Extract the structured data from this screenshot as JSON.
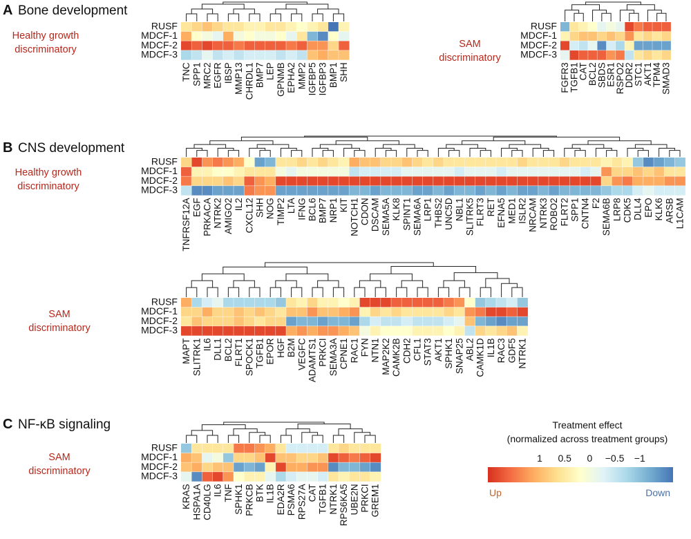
{
  "scale": {
    "colors": [
      "#d7301f",
      "#f46d43",
      "#fdae61",
      "#fee090",
      "#ffffcc",
      "#e0f3f8",
      "#abd9e9",
      "#74add1",
      "#4575b4"
    ],
    "up_color": "#c4622d",
    "down_color": "#4a6fa5",
    "group_label_color": "#b5281c"
  },
  "legend": {
    "title_line1": "Treatment effect",
    "title_line2": "(normalized across treatment groups)",
    "ticks": [
      "1",
      "0.5",
      "0",
      "−0.5",
      "−1"
    ],
    "tick_values": [
      1,
      0.5,
      0,
      -0.5,
      -1
    ],
    "up_label": "Up",
    "down_label": "Down"
  },
  "panels": [
    {
      "letter": "A",
      "title": "Bone development"
    },
    {
      "letter": "B",
      "title": "CNS development"
    },
    {
      "letter": "C",
      "title": "NF-κB signaling"
    }
  ],
  "chart_data": [
    {
      "type": "heatmap",
      "id": "bone-healthy",
      "panel": "A",
      "group_label": [
        "Healthy growth",
        "discriminatory"
      ],
      "rows": [
        "RUSF",
        "MDCF-1",
        "MDCF-2",
        "MDCF-3"
      ],
      "columns": [
        "TNC",
        "SPP1",
        "MRC2",
        "EGFR",
        "IBSP",
        "MMP13",
        "CHRDL1",
        "BMP7",
        "LEP",
        "GPNMB",
        "EPHA2",
        "MMP2",
        "IGFBP5",
        "IGFBP3",
        "BMP1",
        "SHH"
      ],
      "values": [
        [
          0.2,
          0.3,
          0.4,
          0.3,
          0.2,
          0.2,
          0.1,
          0.1,
          0.2,
          0.2,
          0.1,
          0.0,
          0.1,
          0.2,
          -1.0,
          0.1
        ],
        [
          0.5,
          0.0,
          -0.1,
          -0.2,
          0.5,
          -0.1,
          0.0,
          -0.1,
          -0.1,
          0.0,
          -0.2,
          0.2,
          -0.7,
          -0.9,
          0.0,
          -0.2
        ],
        [
          0.9,
          0.8,
          0.9,
          0.8,
          0.8,
          0.7,
          0.8,
          0.8,
          0.8,
          0.8,
          0.7,
          0.8,
          0.6,
          0.6,
          0.3,
          0.8
        ],
        [
          -0.5,
          -0.4,
          -0.2,
          -0.4,
          -0.3,
          -0.4,
          -0.3,
          -0.3,
          -0.3,
          -0.4,
          -0.3,
          -0.4,
          0.4,
          0.5,
          0.4,
          0.4
        ]
      ]
    },
    {
      "type": "heatmap",
      "id": "bone-sam",
      "panel": "A",
      "group_label": [
        "SAM",
        "discriminatory"
      ],
      "rows": [
        "RUSF",
        "MDCF-1",
        "MDCF-2",
        "MDCF-3"
      ],
      "columns": [
        "FGFR3",
        "TGFB1",
        "CAT",
        "BCL2",
        "SBDS",
        "ESR1",
        "RSPO2",
        "DDR2",
        "STC1",
        "AKT1",
        "TPM4",
        "SMAD3"
      ],
      "values": [
        [
          -0.7,
          0.2,
          0.1,
          0.0,
          -0.2,
          -0.1,
          -0.2,
          0.9,
          0.7,
          0.8,
          0.8,
          0.8
        ],
        [
          0.1,
          0.3,
          0.4,
          0.4,
          0.3,
          0.4,
          0.3,
          0.6,
          0.2,
          0.3,
          0.2,
          0.3
        ],
        [
          0.9,
          -0.3,
          -0.4,
          -0.2,
          -0.9,
          -0.3,
          -0.5,
          0.1,
          -0.8,
          -0.8,
          -0.8,
          -0.8
        ],
        [
          -0.2,
          0.9,
          0.8,
          0.8,
          0.8,
          0.6,
          0.7,
          -0.4,
          0.2,
          0.3,
          0.2,
          0.3
        ]
      ]
    },
    {
      "type": "heatmap",
      "id": "cns-healthy",
      "panel": "B",
      "group_label": [
        "Healthy growth",
        "discriminatory"
      ],
      "rows": [
        "RUSF",
        "MDCF-1",
        "MDCF-2",
        "MDCF-3"
      ],
      "columns": [
        "TNFRSF12A",
        "EGF",
        "PRKACA",
        "NTRK2",
        "AMIGO2",
        "IL2",
        "CXCL12",
        "SHH",
        "NOG",
        "TIMP2",
        "LTA",
        "IFNG",
        "BCL6",
        "BMP7",
        "NRP1",
        "KIT",
        "NOTCH1",
        "CDON",
        "DSCAM",
        "SEMA5A",
        "KLK8",
        "SPINT1",
        "SEMA6A",
        "LRP1",
        "THBS2",
        "UNC5D",
        "NBL1",
        "SLITRK5",
        "FLRT3",
        "RET",
        "EFNA5",
        "MED1",
        "ISLR2",
        "NRCAM",
        "NTRK3",
        "ROBO2",
        "FLRT2",
        "SPP1",
        "CNTN4",
        "F2",
        "SEMA6B",
        "LRP8",
        "CDK5",
        "DLL4",
        "EPO",
        "KLK6",
        "ARSB",
        "L1CAM"
      ],
      "values": [
        [
          0.3,
          0.9,
          0.6,
          0.7,
          0.6,
          0.5,
          0.0,
          -0.8,
          -0.7,
          0.2,
          0.2,
          0.3,
          0.2,
          0.3,
          0.2,
          0.1,
          0.5,
          0.4,
          0.4,
          0.3,
          0.3,
          0.4,
          0.3,
          0.2,
          0.3,
          0.2,
          0.2,
          0.2,
          0.2,
          0.2,
          0.2,
          0.2,
          0.3,
          0.2,
          0.2,
          0.2,
          0.3,
          0.2,
          0.2,
          0.2,
          0.1,
          0.2,
          0.1,
          -0.6,
          -0.9,
          -0.8,
          -0.7,
          -0.6
        ],
        [
          0.8,
          0.1,
          0.1,
          0.0,
          0.0,
          0.1,
          0.2,
          0.2,
          0.2,
          -0.1,
          -0.2,
          -0.1,
          -0.1,
          -0.1,
          -0.1,
          -0.1,
          -0.4,
          -0.3,
          -0.3,
          -0.3,
          -0.3,
          -0.2,
          -0.2,
          -0.2,
          -0.2,
          -0.2,
          -0.3,
          -0.2,
          -0.2,
          -0.2,
          -0.3,
          -0.2,
          -0.2,
          -0.2,
          -0.2,
          -0.2,
          -0.2,
          -0.2,
          -0.3,
          -0.2,
          0.6,
          0.3,
          0.3,
          0.4,
          0.3,
          0.4,
          0.2,
          0.2
        ],
        [
          0.7,
          0.3,
          0.3,
          0.3,
          0.4,
          0.3,
          0.8,
          0.6,
          0.5,
          0.9,
          0.9,
          0.9,
          0.9,
          0.9,
          0.9,
          0.9,
          0.9,
          0.9,
          0.9,
          0.9,
          0.9,
          0.9,
          0.9,
          0.9,
          0.9,
          0.9,
          0.9,
          0.9,
          0.9,
          0.9,
          0.9,
          0.9,
          0.9,
          0.9,
          0.9,
          0.9,
          0.9,
          0.9,
          0.9,
          0.9,
          0.3,
          0.6,
          0.7,
          0.5,
          0.5,
          0.5,
          0.6,
          0.6
        ],
        [
          -0.4,
          -0.9,
          -0.9,
          -0.8,
          -0.8,
          -0.8,
          0.7,
          0.6,
          0.6,
          -0.8,
          -0.8,
          -0.8,
          -0.8,
          -0.8,
          -0.8,
          -0.8,
          -0.7,
          -0.7,
          -0.8,
          -0.7,
          -0.7,
          -0.7,
          -0.8,
          -0.8,
          -0.7,
          -0.8,
          -0.7,
          -0.7,
          -0.8,
          -0.7,
          -0.8,
          -0.7,
          -0.8,
          -0.8,
          -0.7,
          -0.8,
          -0.7,
          -0.7,
          -0.7,
          -0.7,
          -0.6,
          -0.5,
          -0.5,
          -0.3,
          -0.2,
          -0.3,
          -0.3,
          -0.3
        ]
      ]
    },
    {
      "type": "heatmap",
      "id": "cns-sam",
      "panel": "B",
      "group_label": [
        "SAM",
        "discriminatory"
      ],
      "rows": [
        "RUSF",
        "MDCF-1",
        "MDCF-2",
        "MDCF-3"
      ],
      "columns": [
        "MAPT",
        "SLITRK1",
        "IL6",
        "DLL1",
        "BCL2",
        "FLRT1",
        "SPOCK1",
        "TGFB1",
        "EPOR",
        "HGF",
        "B2M",
        "VEGFC",
        "ADAMTS1",
        "PRKCI",
        "SEMA3A",
        "CPNE1",
        "RAC1",
        "FYN",
        "NTN1",
        "MAP2K2",
        "CAMK2B",
        "CDH2",
        "CFL1",
        "STAT3",
        "AKT1",
        "SPHK1",
        "SNAP25",
        "ABL2",
        "CAMK1D",
        "IL1B",
        "RAC3",
        "GDF5",
        "NTRK1"
      ],
      "values": [
        [
          0.5,
          -0.5,
          -0.3,
          -0.2,
          -0.5,
          -0.5,
          -0.5,
          -0.5,
          -0.5,
          -0.6,
          0.2,
          0.1,
          0.3,
          0.1,
          0.1,
          0.0,
          0.1,
          0.9,
          0.9,
          0.9,
          0.8,
          0.8,
          0.8,
          0.8,
          0.8,
          0.7,
          0.6,
          0.0,
          -0.6,
          -0.5,
          -0.4,
          -0.3,
          -0.6
        ],
        [
          0.3,
          0.3,
          0.5,
          0.3,
          0.3,
          0.4,
          0.3,
          0.4,
          0.3,
          0.2,
          0.4,
          0.4,
          0.6,
          0.4,
          0.4,
          0.5,
          0.6,
          0.1,
          0.3,
          0.2,
          0.3,
          0.2,
          0.2,
          0.2,
          0.2,
          0.3,
          0.2,
          0.6,
          0.7,
          0.9,
          0.9,
          0.8,
          0.9
        ],
        [
          0.2,
          0.4,
          0.3,
          0.3,
          0.3,
          0.4,
          0.3,
          0.2,
          0.3,
          0.3,
          -0.8,
          -0.7,
          -0.7,
          -0.8,
          -0.7,
          -0.7,
          -0.8,
          -0.5,
          -0.3,
          -0.4,
          -0.4,
          -0.3,
          -0.4,
          -0.4,
          -0.4,
          -0.3,
          -0.2,
          0.4,
          -0.7,
          -0.8,
          -0.9,
          -0.8,
          -0.8
        ],
        [
          0.9,
          0.9,
          0.9,
          0.9,
          0.9,
          0.9,
          0.9,
          0.9,
          0.9,
          0.9,
          0.5,
          0.6,
          0.5,
          0.6,
          0.6,
          0.5,
          0.4,
          -0.1,
          0.1,
          0.0,
          0.0,
          0.0,
          0.1,
          0.1,
          0.1,
          0.0,
          0.1,
          -0.4,
          0.3,
          0.2,
          0.3,
          0.4,
          0.1
        ]
      ]
    },
    {
      "type": "heatmap",
      "id": "nfkb-sam",
      "panel": "C",
      "group_label": [
        "SAM",
        "discriminatory"
      ],
      "rows": [
        "RUSF",
        "MDCF-1",
        "MDCF-2",
        "MDCF-3"
      ],
      "columns": [
        "KRAS",
        "HSPA1A",
        "CD40LG",
        "IL6",
        "TNF",
        "SPHK1",
        "PRKCB",
        "BTK",
        "IL1B",
        "EDA2R",
        "PSMA6",
        "RPS27A",
        "CAT",
        "TGFB1",
        "NTRK1",
        "RPS6KA5",
        "UBE2N",
        "PRKCI",
        "GREM1"
      ],
      "values": [
        [
          -0.6,
          0.2,
          0.2,
          0.2,
          0.2,
          0.7,
          0.7,
          0.6,
          0.5,
          0.2,
          -0.3,
          -0.3,
          -0.3,
          -0.3,
          0.2,
          0.3,
          0.2,
          0.2,
          0.2
        ],
        [
          0.5,
          0.4,
          -0.2,
          -0.1,
          -0.6,
          0.3,
          0.3,
          0.4,
          0.9,
          0.4,
          0.4,
          0.3,
          0.3,
          0.4,
          0.9,
          0.8,
          0.7,
          0.8,
          0.9
        ],
        [
          0.4,
          0.5,
          0.3,
          0.4,
          0.4,
          -0.8,
          -0.7,
          -0.8,
          0.1,
          0.9,
          0.5,
          0.5,
          0.6,
          0.6,
          -0.9,
          -0.7,
          -0.7,
          -0.8,
          -0.9
        ],
        [
          -0.2,
          -0.9,
          0.8,
          0.9,
          0.6,
          0.0,
          0.1,
          0.1,
          -0.2,
          -0.5,
          -0.3,
          -0.2,
          -0.2,
          -0.3,
          0.2,
          0.1,
          0.2,
          0.2,
          0.1
        ]
      ]
    }
  ]
}
